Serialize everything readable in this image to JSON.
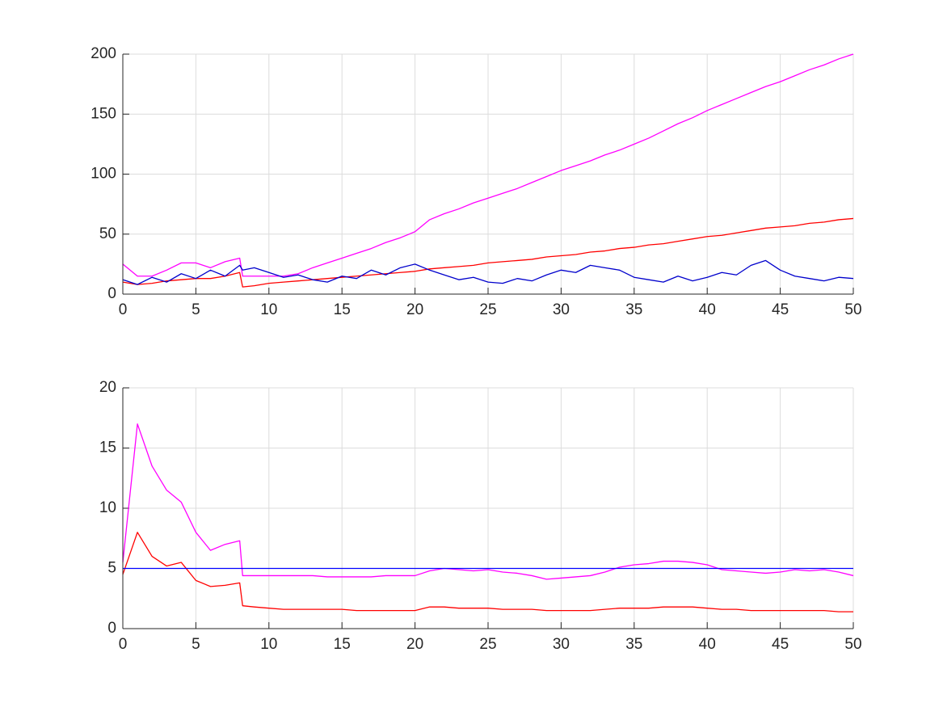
{
  "chart_data": [
    {
      "type": "line",
      "x": [
        0,
        1,
        2,
        3,
        4,
        5,
        6,
        7,
        8,
        8.2,
        9,
        10,
        11,
        12,
        13,
        14,
        15,
        16,
        17,
        18,
        19,
        20,
        21,
        22,
        23,
        24,
        25,
        26,
        27,
        28,
        29,
        30,
        31,
        32,
        33,
        34,
        35,
        36,
        37,
        38,
        39,
        40,
        41,
        42,
        43,
        44,
        45,
        46,
        47,
        48,
        49,
        50
      ],
      "series": [
        {
          "color": "#ff00ff",
          "values": [
            25,
            15,
            15,
            20,
            26,
            26,
            22,
            27,
            30,
            15,
            15,
            15,
            15,
            17,
            22,
            26,
            30,
            34,
            38,
            43,
            47,
            52,
            62,
            67,
            71,
            76,
            80,
            84,
            88,
            93,
            98,
            103,
            107,
            111,
            116,
            120,
            125,
            130,
            136,
            142,
            147,
            153,
            158,
            163,
            168,
            173,
            177,
            182,
            187,
            191,
            196,
            200
          ]
        },
        {
          "color": "#ff0000",
          "values": [
            10,
            8,
            9,
            11,
            12,
            13,
            13,
            15,
            18,
            6,
            7,
            9,
            10,
            11,
            12,
            13,
            14,
            15,
            16,
            17,
            18,
            19,
            21,
            22,
            23,
            24,
            26,
            27,
            28,
            29,
            31,
            32,
            33,
            35,
            36,
            38,
            39,
            41,
            42,
            44,
            46,
            48,
            49,
            51,
            53,
            55,
            56,
            57,
            59,
            60,
            62,
            63
          ]
        },
        {
          "color": "#0000cc",
          "values": [
            12,
            8,
            14,
            10,
            17,
            13,
            20,
            15,
            24,
            20,
            22,
            18,
            14,
            16,
            12,
            10,
            15,
            13,
            20,
            16,
            22,
            25,
            20,
            16,
            12,
            14,
            10,
            9,
            13,
            11,
            16,
            20,
            18,
            24,
            22,
            20,
            14,
            12,
            10,
            15,
            11,
            14,
            18,
            16,
            24,
            28,
            20,
            15,
            13,
            11,
            14,
            13
          ]
        }
      ],
      "xlim": [
        0,
        50
      ],
      "ylim": [
        0,
        200
      ],
      "xticks": [
        0,
        5,
        10,
        15,
        20,
        25,
        30,
        35,
        40,
        45,
        50
      ],
      "yticks": [
        0,
        50,
        100,
        150,
        200
      ],
      "grid": true
    },
    {
      "type": "line",
      "x": [
        0,
        1,
        2,
        3,
        4,
        5,
        6,
        7,
        8,
        8.2,
        9,
        10,
        11,
        12,
        13,
        14,
        15,
        16,
        17,
        18,
        19,
        20,
        21,
        22,
        23,
        24,
        25,
        26,
        27,
        28,
        29,
        30,
        31,
        32,
        33,
        34,
        35,
        36,
        37,
        38,
        39,
        40,
        41,
        42,
        43,
        44,
        45,
        46,
        47,
        48,
        49,
        50
      ],
      "series": [
        {
          "color": "#ff00ff",
          "values": [
            5.5,
            17,
            13.5,
            11.5,
            10.5,
            8,
            6.5,
            7,
            7.3,
            4.4,
            4.4,
            4.4,
            4.4,
            4.4,
            4.4,
            4.3,
            4.3,
            4.3,
            4.3,
            4.4,
            4.4,
            4.4,
            4.8,
            5,
            4.9,
            4.8,
            4.9,
            4.7,
            4.6,
            4.4,
            4.1,
            4.2,
            4.3,
            4.4,
            4.7,
            5.1,
            5.3,
            5.4,
            5.6,
            5.6,
            5.5,
            5.3,
            4.9,
            4.8,
            4.7,
            4.6,
            4.7,
            4.9,
            4.8,
            4.9,
            4.7,
            4.4
          ]
        },
        {
          "color": "#ff0000",
          "values": [
            4.5,
            8,
            6,
            5.2,
            5.5,
            4,
            3.5,
            3.6,
            3.8,
            1.9,
            1.8,
            1.7,
            1.6,
            1.6,
            1.6,
            1.6,
            1.6,
            1.5,
            1.5,
            1.5,
            1.5,
            1.5,
            1.8,
            1.8,
            1.7,
            1.7,
            1.7,
            1.6,
            1.6,
            1.6,
            1.5,
            1.5,
            1.5,
            1.5,
            1.6,
            1.7,
            1.7,
            1.7,
            1.8,
            1.8,
            1.8,
            1.7,
            1.6,
            1.6,
            1.5,
            1.5,
            1.5,
            1.5,
            1.5,
            1.5,
            1.4,
            1.4
          ]
        },
        {
          "color": "#0000ff",
          "values": [
            5,
            5,
            5,
            5,
            5,
            5,
            5,
            5,
            5,
            5,
            5,
            5,
            5,
            5,
            5,
            5,
            5,
            5,
            5,
            5,
            5,
            5,
            5,
            5,
            5,
            5,
            5,
            5,
            5,
            5,
            5,
            5,
            5,
            5,
            5,
            5,
            5,
            5,
            5,
            5,
            5,
            5,
            5,
            5,
            5,
            5,
            5,
            5,
            5,
            5,
            5,
            5
          ]
        }
      ],
      "xlim": [
        0,
        50
      ],
      "ylim": [
        0,
        20
      ],
      "xticks": [
        0,
        5,
        10,
        15,
        20,
        25,
        30,
        35,
        40,
        45,
        50
      ],
      "yticks": [
        0,
        5,
        10,
        15,
        20
      ],
      "grid": true
    }
  ]
}
